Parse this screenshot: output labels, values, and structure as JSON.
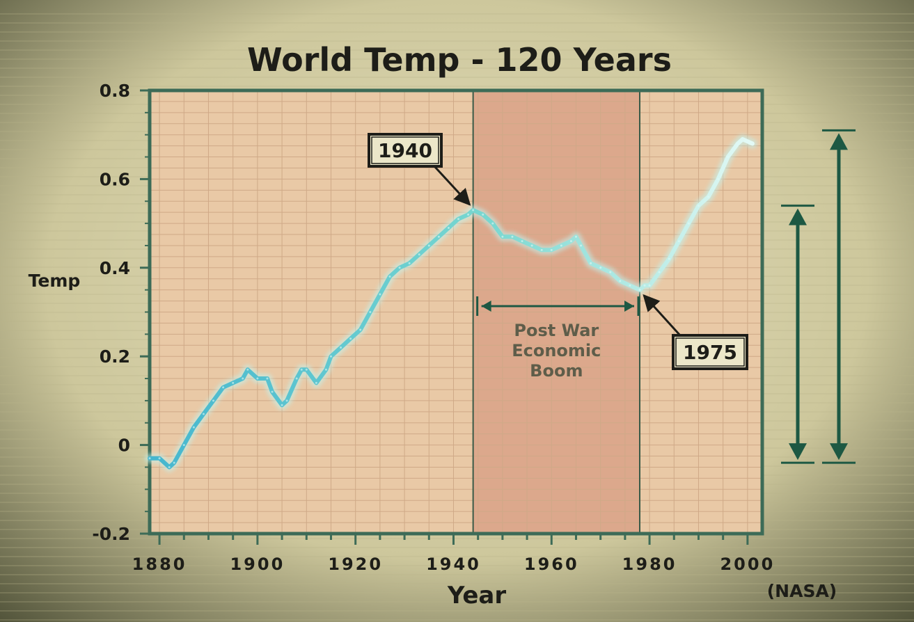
{
  "chart_data": {
    "type": "line",
    "title": "World Temp - 120 Years",
    "xlabel": "Year",
    "ylabel": "Temp",
    "source": "(NASA)",
    "xlim": [
      1878,
      2003
    ],
    "ylim": [
      -0.2,
      0.8
    ],
    "x_ticks": [
      1880,
      1900,
      1920,
      1940,
      1960,
      1980,
      2000
    ],
    "y_ticks": [
      -0.2,
      0,
      0.2,
      0.4,
      0.6,
      0.8
    ],
    "y_tick_labels": [
      "-0.2",
      "0",
      "0.2",
      "0.4",
      "0.6",
      "0.8"
    ],
    "grid": true,
    "series": [
      {
        "x": [
          1878,
          1880,
          1882,
          1883,
          1885,
          1887,
          1889,
          1891,
          1893,
          1895,
          1897,
          1898,
          1900,
          1902,
          1903,
          1905,
          1906,
          1908,
          1909,
          1910,
          1912,
          1914,
          1915,
          1917,
          1919,
          1921,
          1923,
          1925,
          1927,
          1929,
          1931,
          1933,
          1935,
          1937,
          1939,
          1941,
          1943,
          1944,
          1946,
          1948,
          1950,
          1952,
          1954,
          1956,
          1958,
          1960,
          1962,
          1964,
          1965,
          1966,
          1968,
          1970,
          1972,
          1974,
          1976,
          1978,
          1979,
          1980,
          1982,
          1984,
          1986,
          1988,
          1990,
          1992,
          1994,
          1996,
          1998,
          1999,
          2001
        ],
        "y": [
          -0.03,
          -0.03,
          -0.05,
          -0.04,
          0.0,
          0.04,
          0.07,
          0.1,
          0.13,
          0.14,
          0.15,
          0.17,
          0.15,
          0.15,
          0.12,
          0.09,
          0.1,
          0.15,
          0.17,
          0.17,
          0.14,
          0.17,
          0.2,
          0.22,
          0.24,
          0.26,
          0.3,
          0.34,
          0.38,
          0.4,
          0.41,
          0.43,
          0.45,
          0.47,
          0.49,
          0.51,
          0.52,
          0.53,
          0.52,
          0.5,
          0.47,
          0.47,
          0.46,
          0.45,
          0.44,
          0.44,
          0.45,
          0.46,
          0.47,
          0.45,
          0.41,
          0.4,
          0.39,
          0.37,
          0.36,
          0.35,
          0.36,
          0.36,
          0.39,
          0.42,
          0.46,
          0.5,
          0.54,
          0.56,
          0.6,
          0.65,
          0.68,
          0.69,
          0.68
        ]
      }
    ],
    "shaded_region": {
      "x_start": 1944,
      "x_end": 1978,
      "label": [
        "Post War",
        "Economic",
        "Boom"
      ]
    },
    "annotations": [
      {
        "text": "1940",
        "x": 1944,
        "y": 0.53
      },
      {
        "text": "1975",
        "x": 1978,
        "y": 0.35
      }
    ],
    "range_arrows": [
      {
        "y_from": -0.04,
        "y_to": 0.54
      },
      {
        "y_from": -0.04,
        "y_to": 0.71
      }
    ],
    "colors": {
      "background": "#cfc9a0",
      "plot_fill": "#e9c9a6",
      "band_fill": "#dca88c",
      "frame": "#3d6b57",
      "arrow": "#1d5843",
      "line_start": "#46b6cf",
      "line_end": "#e8fbf7",
      "text": "#1d1d18"
    }
  }
}
